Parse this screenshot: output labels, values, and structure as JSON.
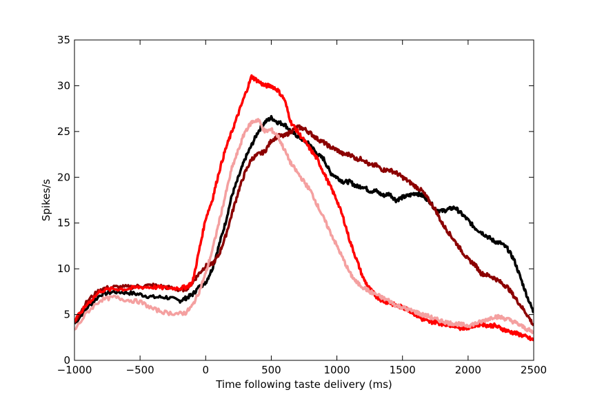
{
  "chart_data": {
    "type": "line",
    "title": "",
    "xlabel": "Time following taste delivery (ms)",
    "ylabel": "Spikes/s",
    "xlim": [
      -1000,
      2500
    ],
    "ylim": [
      0,
      35
    ],
    "xticks": [
      -1000,
      -500,
      0,
      500,
      1000,
      1500,
      2000,
      2500
    ],
    "xtick_labels": [
      "−1000",
      "−500",
      "0",
      "500",
      "1000",
      "1500",
      "2000",
      "2500"
    ],
    "yticks": [
      0,
      5,
      10,
      15,
      20,
      25,
      30,
      35
    ],
    "ytick_labels": [
      "0",
      "5",
      "10",
      "15",
      "20",
      "25",
      "30",
      "35"
    ],
    "grid": false,
    "series": [
      {
        "color": "#000000",
        "x": [
          -1000,
          -900,
          -800,
          -700,
          -600,
          -500,
          -400,
          -300,
          -200,
          -150,
          -100,
          -50,
          0,
          50,
          100,
          150,
          200,
          250,
          300,
          350,
          400,
          450,
          500,
          550,
          600,
          650,
          700,
          750,
          800,
          850,
          900,
          950,
          1000,
          1050,
          1100,
          1150,
          1200,
          1250,
          1300,
          1350,
          1400,
          1450,
          1500,
          1550,
          1600,
          1650,
          1700,
          1750,
          1800,
          1850,
          1900,
          1950,
          2000,
          2050,
          2100,
          2150,
          2200,
          2250,
          2300,
          2350,
          2400,
          2450,
          2500
        ],
        "y": [
          4.0,
          5.8,
          7.2,
          7.5,
          7.4,
          7.2,
          6.9,
          6.9,
          6.5,
          6.8,
          7.2,
          8.0,
          8.5,
          10.0,
          12.5,
          15.0,
          18.0,
          20.0,
          22.0,
          23.5,
          25.0,
          26.0,
          26.5,
          26.0,
          25.8,
          25.0,
          24.5,
          24.0,
          23.5,
          22.5,
          22.0,
          20.5,
          20.0,
          19.5,
          19.5,
          19.0,
          19.0,
          18.5,
          18.5,
          18.0,
          18.2,
          17.5,
          17.8,
          18.0,
          18.3,
          18.0,
          17.5,
          16.5,
          16.3,
          16.5,
          16.7,
          16.0,
          15.3,
          14.5,
          14.0,
          13.5,
          13.0,
          12.8,
          12.2,
          11.0,
          9.0,
          7.0,
          5.2
        ]
      },
      {
        "color": "#8b0000",
        "x": [
          -1000,
          -900,
          -800,
          -700,
          -600,
          -500,
          -400,
          -300,
          -200,
          -150,
          -100,
          -50,
          0,
          50,
          100,
          150,
          200,
          250,
          300,
          350,
          400,
          450,
          500,
          550,
          600,
          650,
          700,
          750,
          800,
          850,
          900,
          950,
          1000,
          1050,
          1100,
          1150,
          1200,
          1250,
          1300,
          1350,
          1400,
          1450,
          1500,
          1550,
          1600,
          1650,
          1700,
          1750,
          1800,
          1850,
          1900,
          1950,
          2000,
          2050,
          2100,
          2150,
          2200,
          2250,
          2300,
          2350,
          2400,
          2450,
          2500
        ],
        "y": [
          4.2,
          6.5,
          7.8,
          8.0,
          8.0,
          8.1,
          8.2,
          8.0,
          7.7,
          7.8,
          8.5,
          9.5,
          10.3,
          10.5,
          11.5,
          13.5,
          16.0,
          18.5,
          20.5,
          22.0,
          22.5,
          22.8,
          24.0,
          24.5,
          24.5,
          25.0,
          25.5,
          25.3,
          24.8,
          24.2,
          23.8,
          23.3,
          23.0,
          22.5,
          22.5,
          22.0,
          22.0,
          21.3,
          21.3,
          20.8,
          20.8,
          20.5,
          20.0,
          19.5,
          19.0,
          18.5,
          17.5,
          16.5,
          15.0,
          14.0,
          13.0,
          12.0,
          11.0,
          10.5,
          9.5,
          9.3,
          9.0,
          8.5,
          8.0,
          7.0,
          6.0,
          5.0,
          3.8
        ]
      },
      {
        "color": "#ff0000",
        "x": [
          -1000,
          -900,
          -800,
          -700,
          -600,
          -500,
          -400,
          -300,
          -200,
          -150,
          -100,
          -50,
          0,
          50,
          100,
          150,
          200,
          250,
          300,
          350,
          400,
          450,
          500,
          550,
          600,
          650,
          700,
          750,
          800,
          850,
          900,
          950,
          1000,
          1050,
          1100,
          1150,
          1200,
          1250,
          1300,
          1350,
          1400,
          1450,
          1500,
          1550,
          1600,
          1650,
          1700,
          1750,
          1800,
          1850,
          1900,
          1950,
          2000,
          2050,
          2100,
          2150,
          2200,
          2250,
          2300,
          2350,
          2400,
          2450,
          2500
        ],
        "y": [
          4.3,
          6.2,
          7.6,
          7.8,
          7.8,
          8.0,
          8.0,
          7.9,
          7.9,
          8.0,
          8.5,
          12.0,
          15.5,
          17.5,
          20.5,
          23.0,
          25.0,
          27.0,
          29.0,
          31.0,
          30.5,
          30.0,
          30.0,
          29.5,
          28.5,
          26.0,
          25.0,
          24.0,
          23.0,
          22.0,
          20.5,
          19.0,
          17.5,
          15.5,
          13.0,
          11.0,
          9.0,
          7.8,
          7.0,
          6.5,
          6.3,
          6.0,
          5.8,
          5.5,
          5.0,
          4.5,
          4.2,
          4.2,
          4.0,
          3.9,
          3.8,
          3.5,
          3.6,
          3.8,
          4.0,
          3.8,
          3.8,
          3.5,
          3.2,
          3.0,
          2.8,
          2.5,
          2.2
        ]
      },
      {
        "color": "#f4a0a0",
        "x": [
          -1000,
          -900,
          -800,
          -700,
          -600,
          -500,
          -400,
          -300,
          -200,
          -150,
          -100,
          -50,
          0,
          50,
          100,
          150,
          200,
          250,
          300,
          350,
          400,
          450,
          500,
          550,
          600,
          650,
          700,
          750,
          800,
          850,
          900,
          950,
          1000,
          1050,
          1100,
          1150,
          1200,
          1250,
          1300,
          1350,
          1400,
          1450,
          1500,
          1550,
          1600,
          1650,
          1700,
          1750,
          1800,
          1850,
          1900,
          1950,
          2000,
          2050,
          2100,
          2150,
          2200,
          2250,
          2300,
          2350,
          2400,
          2450,
          2500
        ],
        "y": [
          3.3,
          5.3,
          6.6,
          6.9,
          6.6,
          6.4,
          5.6,
          5.2,
          5.1,
          5.2,
          6.0,
          7.5,
          9.5,
          12.0,
          15.0,
          18.0,
          21.0,
          23.0,
          25.0,
          26.0,
          26.3,
          25.0,
          25.2,
          24.5,
          23.0,
          21.5,
          20.5,
          19.5,
          18.5,
          17.0,
          15.5,
          14.0,
          12.5,
          11.0,
          9.5,
          8.5,
          8.0,
          7.5,
          7.2,
          6.8,
          6.5,
          6.0,
          5.8,
          5.5,
          5.3,
          5.0,
          4.8,
          4.5,
          4.3,
          4.1,
          4.0,
          3.9,
          3.8,
          4.0,
          4.2,
          4.5,
          4.8,
          4.7,
          4.5,
          4.2,
          3.8,
          3.4,
          3.0
        ]
      }
    ]
  }
}
